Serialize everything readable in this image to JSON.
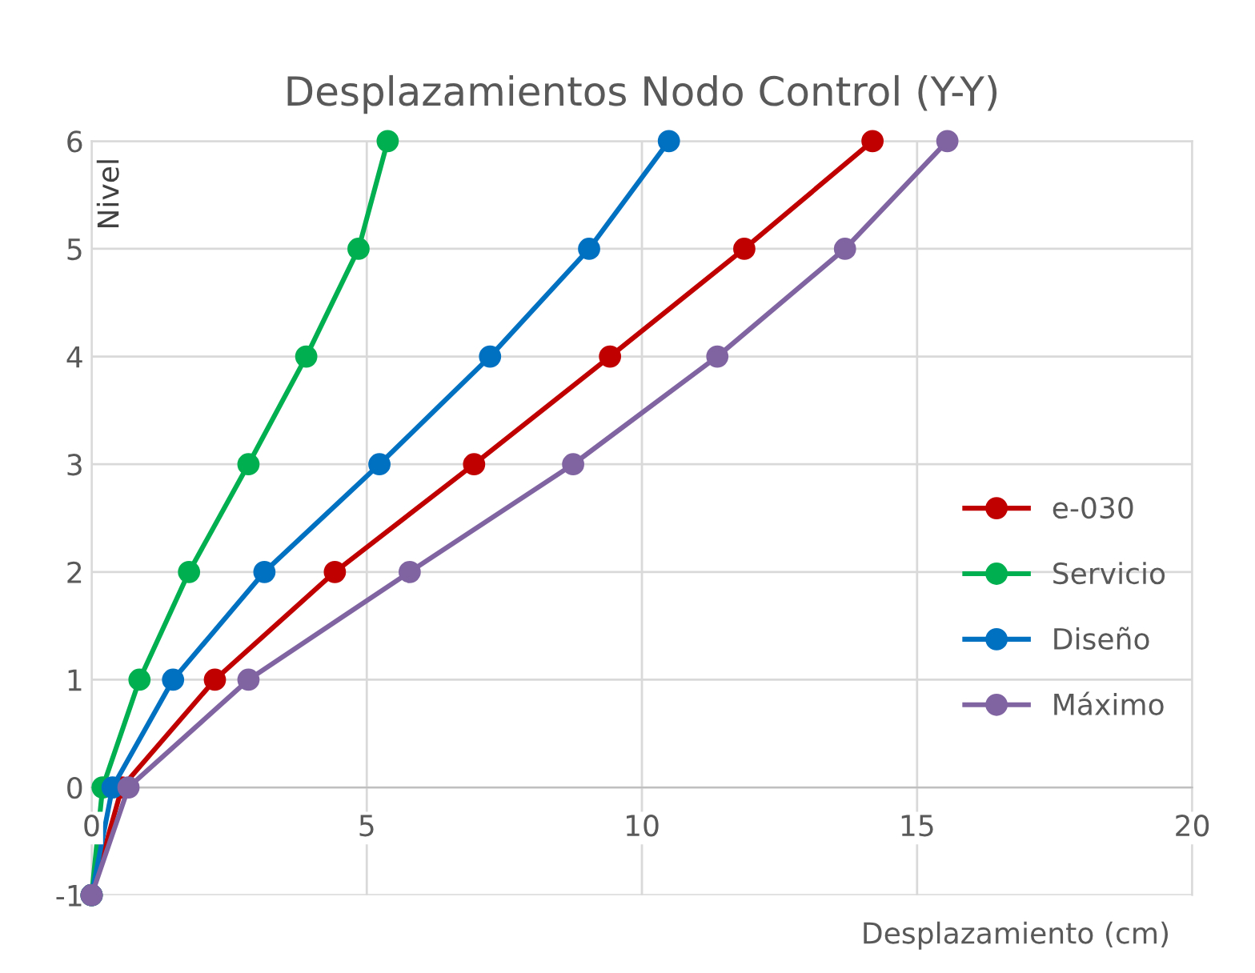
{
  "chart_data": {
    "type": "line",
    "title": "Desplazamientos Nodo Control (Y-Y)",
    "xlabel": "Desplazamiento (cm)",
    "ylabel": "Nivel",
    "xlim": [
      0,
      20
    ],
    "xticks": [
      0,
      5,
      10,
      15,
      20
    ],
    "ylim": [
      -1,
      6
    ],
    "yticks": [
      -1,
      0,
      1,
      2,
      3,
      4,
      5,
      6
    ],
    "grid": true,
    "legend": "right",
    "marker": "circle",
    "line_style": "solid",
    "series": [
      {
        "name": "e-030",
        "color": "#c00000",
        "x": [
          0,
          0.55,
          2.24,
          4.42,
          6.95,
          9.42,
          11.86,
          14.19
        ],
        "values": [
          -1,
          0,
          1,
          2,
          3,
          4,
          5,
          6
        ]
      },
      {
        "name": "Servicio",
        "color": "#00b050",
        "x": [
          0,
          0.2,
          0.87,
          1.77,
          2.85,
          3.9,
          4.85,
          5.38
        ],
        "values": [
          -1,
          0,
          1,
          2,
          3,
          4,
          5,
          6
        ]
      },
      {
        "name": "Diseño",
        "color": "#0070c0",
        "x": [
          0,
          0.38,
          1.48,
          3.14,
          5.23,
          7.24,
          9.04,
          10.49
        ],
        "values": [
          -1,
          0,
          1,
          2,
          3,
          4,
          5,
          6
        ]
      },
      {
        "name": "Máximo",
        "color": "#8064a2",
        "x": [
          0,
          0.67,
          2.85,
          5.78,
          8.75,
          11.37,
          13.69,
          15.55
        ],
        "values": [
          -1,
          0,
          1,
          2,
          3,
          4,
          5,
          6
        ]
      }
    ]
  }
}
